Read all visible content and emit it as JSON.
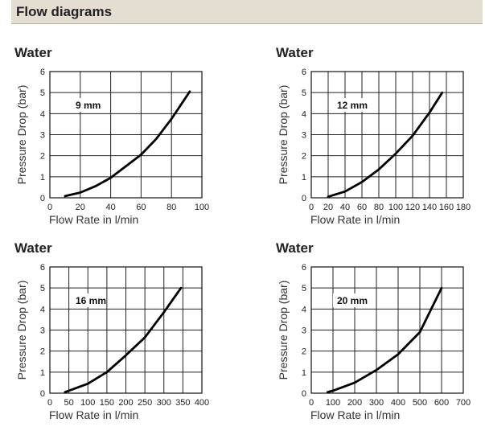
{
  "header": {
    "title": "Flow diagrams"
  },
  "chart_data": [
    {
      "type": "line",
      "title": "Water",
      "annotation": "9 mm",
      "xlabel": "Flow Rate in l/min",
      "ylabel": "Pressure Drop (bar)",
      "xlim": [
        0,
        100
      ],
      "ylim": [
        0,
        6
      ],
      "xticks": [
        0,
        20,
        40,
        60,
        80,
        100
      ],
      "yticks": [
        0,
        1,
        2,
        3,
        4,
        5,
        6
      ],
      "grid": true,
      "x": [
        10,
        20,
        30,
        40,
        50,
        60,
        70,
        80,
        92
      ],
      "y": [
        0.08,
        0.25,
        0.55,
        0.95,
        1.5,
        2.05,
        2.8,
        3.75,
        5.05
      ]
    },
    {
      "type": "line",
      "title": "Water",
      "annotation": "12 mm",
      "xlabel": "Flow Rate in l/min",
      "ylabel": "Pressure Drop (bar)",
      "xlim": [
        0,
        180
      ],
      "ylim": [
        0,
        6
      ],
      "xticks": [
        0,
        20,
        40,
        60,
        80,
        100,
        120,
        140,
        160,
        180
      ],
      "yticks": [
        0,
        1,
        2,
        3,
        4,
        5,
        6
      ],
      "grid": true,
      "x": [
        20,
        40,
        60,
        80,
        100,
        120,
        140,
        155
      ],
      "y": [
        0.05,
        0.3,
        0.75,
        1.35,
        2.1,
        2.95,
        4.05,
        5.0
      ]
    },
    {
      "type": "line",
      "title": "Water",
      "annotation": "16 mm",
      "xlabel": "Flow Rate in l/min",
      "ylabel": "Pressure Drop (bar)",
      "xlim": [
        0,
        400
      ],
      "ylim": [
        0,
        6
      ],
      "xticks": [
        0,
        50,
        100,
        150,
        200,
        250,
        300,
        350,
        400
      ],
      "yticks": [
        0,
        1,
        2,
        3,
        4,
        5,
        6
      ],
      "grid": true,
      "x": [
        40,
        100,
        150,
        200,
        250,
        300,
        345
      ],
      "y": [
        0.05,
        0.45,
        1.0,
        1.8,
        2.65,
        3.85,
        5.0
      ]
    },
    {
      "type": "line",
      "title": "Water",
      "annotation": "20 mm",
      "xlabel": "Flow Rate in l/min",
      "ylabel": "Pressure Drop (bar)",
      "xlim": [
        0,
        700
      ],
      "ylim": [
        0,
        6
      ],
      "xticks": [
        0,
        100,
        200,
        300,
        400,
        500,
        600,
        700
      ],
      "yticks": [
        0,
        1,
        2,
        3,
        4,
        5,
        6
      ],
      "grid": true,
      "x": [
        75,
        100,
        200,
        300,
        400,
        500,
        600
      ],
      "y": [
        0.05,
        0.12,
        0.5,
        1.1,
        1.85,
        2.9,
        5.0
      ]
    }
  ]
}
